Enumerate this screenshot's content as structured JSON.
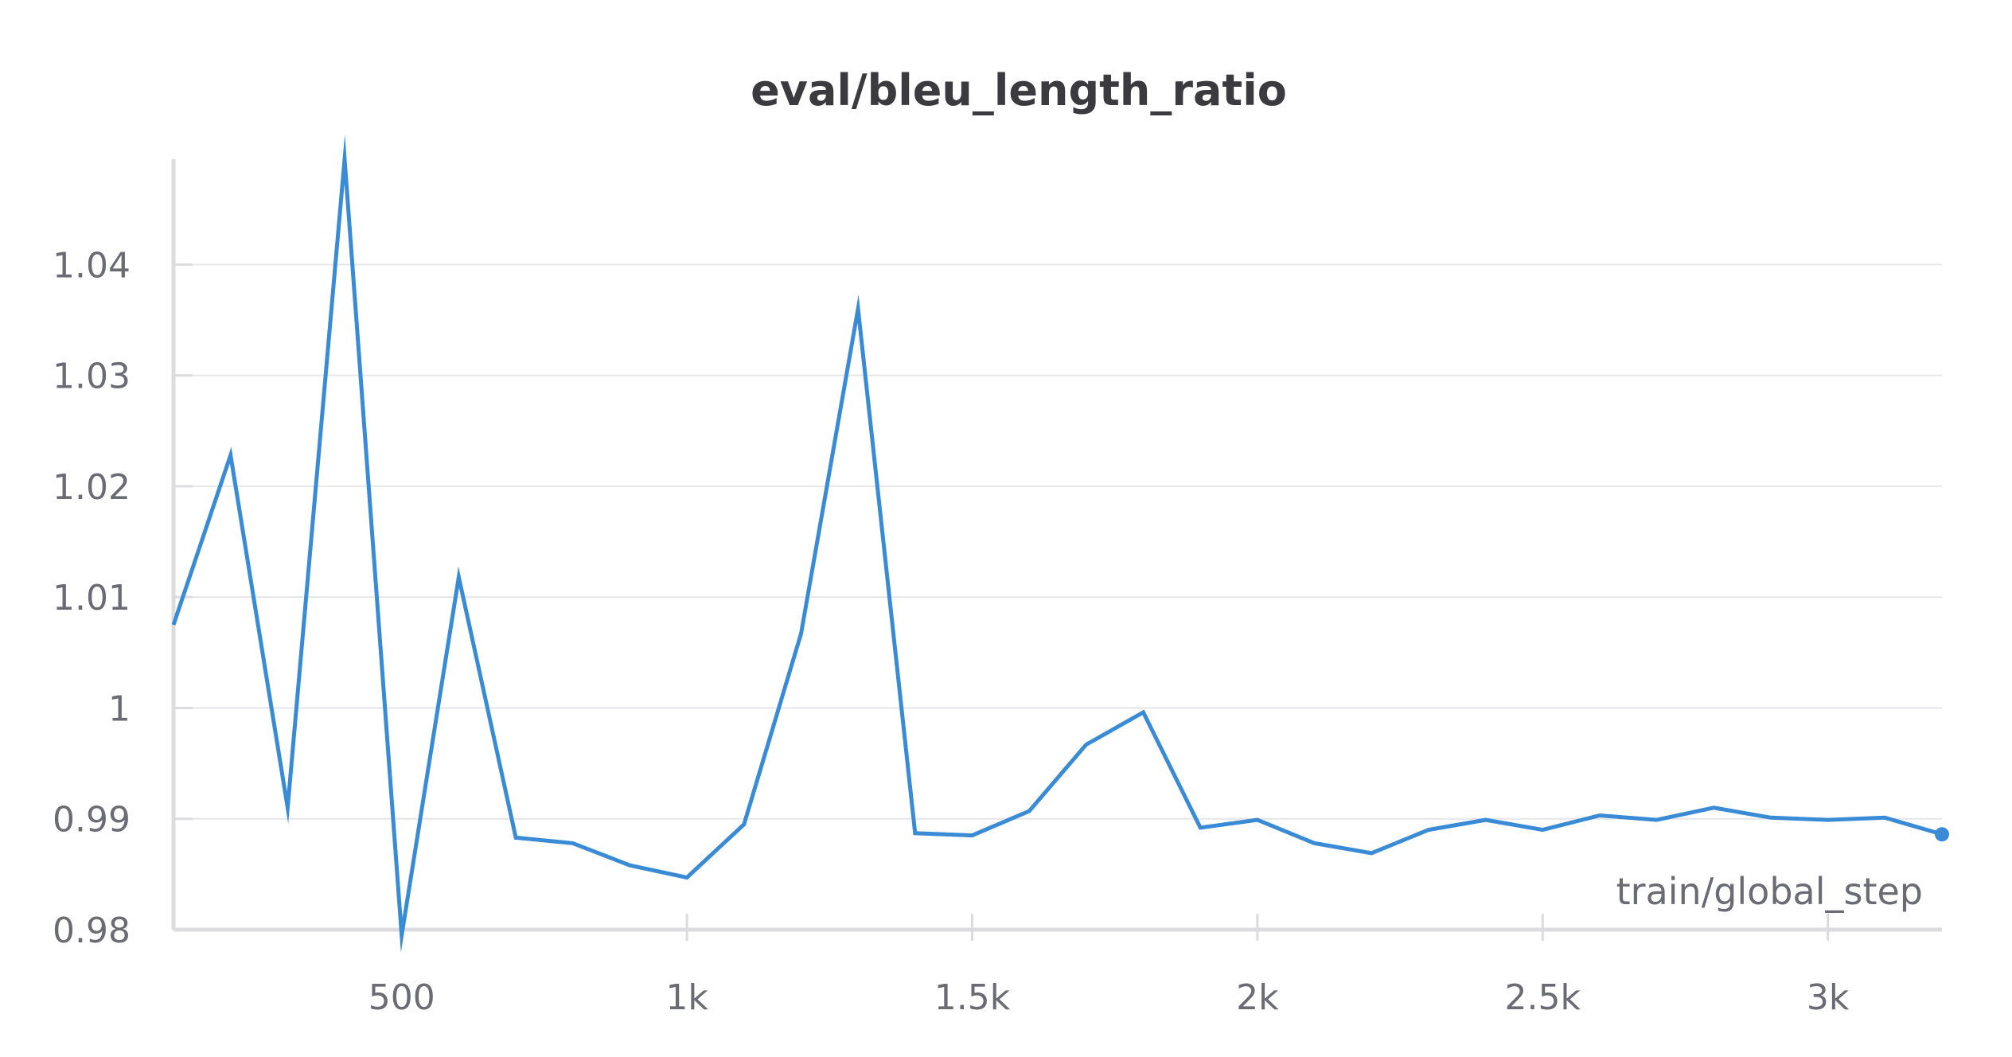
{
  "chart_data": {
    "type": "line",
    "title": "eval/bleu_length_ratio",
    "xlabel": "train/global_step",
    "ylabel": "",
    "xlim": [
      100,
      3200
    ],
    "ylim": [
      0.98,
      1.0495
    ],
    "x_ticks": [
      {
        "value": 500,
        "label": "500"
      },
      {
        "value": 1000,
        "label": "1k"
      },
      {
        "value": 1500,
        "label": "1.5k"
      },
      {
        "value": 2000,
        "label": "2k"
      },
      {
        "value": 2500,
        "label": "2.5k"
      },
      {
        "value": 3000,
        "label": "3k"
      }
    ],
    "y_ticks": [
      {
        "value": 0.98,
        "label": "0.98"
      },
      {
        "value": 0.99,
        "label": "0.99"
      },
      {
        "value": 1.0,
        "label": "1"
      },
      {
        "value": 1.01,
        "label": "1.01"
      },
      {
        "value": 1.02,
        "label": "1.02"
      },
      {
        "value": 1.03,
        "label": "1.03"
      },
      {
        "value": 1.04,
        "label": "1.04"
      }
    ],
    "grid": true,
    "line_color": "#3a8bd6",
    "series": [
      {
        "x": [
          100,
          200,
          300,
          400,
          500,
          600,
          700,
          800,
          900,
          1000,
          1100,
          1200,
          1300,
          1400,
          1500,
          1600,
          1700,
          1800,
          1900,
          2000,
          2100,
          2200,
          2300,
          2400,
          2500,
          2600,
          2700,
          2800,
          2900,
          3000,
          3100,
          3200
        ],
        "values": [
          1.0075,
          1.0228,
          0.991,
          1.0495,
          0.9795,
          1.0118,
          0.9883,
          0.9878,
          0.9858,
          0.9847,
          0.9895,
          1.0067,
          1.036,
          0.9887,
          0.9885,
          0.9907,
          0.9967,
          0.9996,
          0.9892,
          0.9899,
          0.9878,
          0.9869,
          0.989,
          0.9899,
          0.989,
          0.9903,
          0.9899,
          0.991,
          0.9901,
          0.9899,
          0.9901,
          0.9886
        ]
      }
    ]
  }
}
